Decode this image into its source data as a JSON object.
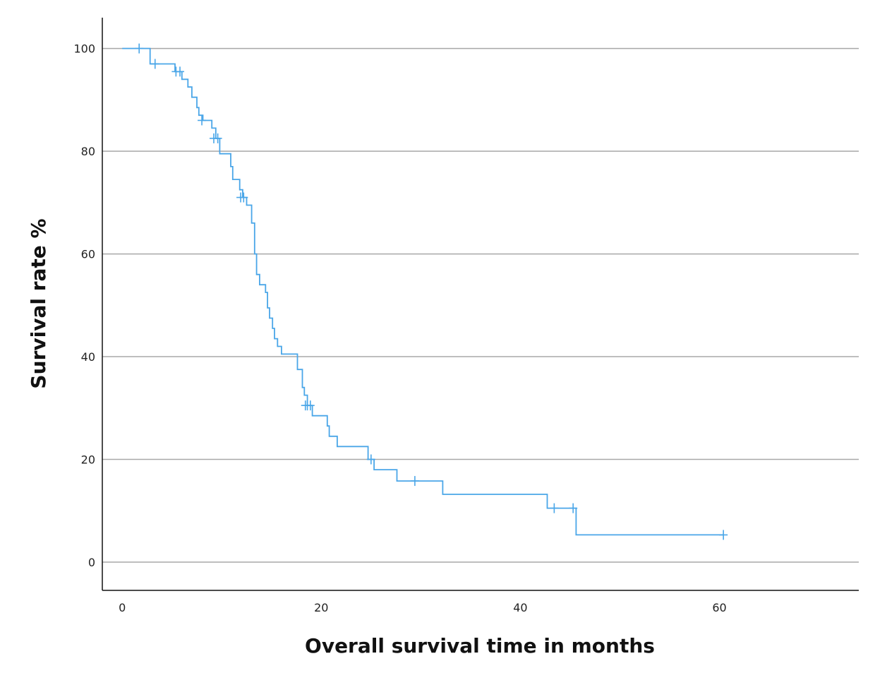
{
  "chart_data": {
    "type": "line",
    "title": "",
    "xlabel": "Overall survival time in months",
    "ylabel": "Survival rate %",
    "xlim": [
      -2,
      74
    ],
    "ylim": [
      -5.5,
      106
    ],
    "xticks": [
      0,
      20,
      40,
      60
    ],
    "yticks": [
      0,
      20,
      40,
      60,
      80,
      100
    ],
    "grid": {
      "horizontal": true,
      "vertical": false
    },
    "series": [
      {
        "color": "#4aa6e8",
        "step": true,
        "points": [
          [
            0,
            100
          ],
          [
            2.8,
            100
          ],
          [
            2.8,
            97
          ],
          [
            5.3,
            97
          ],
          [
            5.3,
            95.5
          ],
          [
            6.0,
            95.5
          ],
          [
            6.0,
            94.0
          ],
          [
            6.6,
            94.0
          ],
          [
            6.6,
            92.5
          ],
          [
            7.0,
            92.5
          ],
          [
            7.0,
            90.5
          ],
          [
            7.5,
            90.5
          ],
          [
            7.5,
            88.5
          ],
          [
            7.7,
            88.5
          ],
          [
            7.7,
            87.0
          ],
          [
            8.1,
            87.0
          ],
          [
            8.1,
            86.0
          ],
          [
            9.0,
            86.0
          ],
          [
            9.0,
            84.5
          ],
          [
            9.4,
            84.5
          ],
          [
            9.4,
            82.5
          ],
          [
            9.8,
            82.5
          ],
          [
            9.8,
            79.5
          ],
          [
            10.9,
            79.5
          ],
          [
            10.9,
            77.0
          ],
          [
            11.1,
            77.0
          ],
          [
            11.1,
            74.5
          ],
          [
            11.8,
            74.5
          ],
          [
            11.8,
            72.5
          ],
          [
            12.1,
            72.5
          ],
          [
            12.1,
            71.0
          ],
          [
            12.5,
            71.0
          ],
          [
            12.5,
            69.5
          ],
          [
            13.0,
            69.5
          ],
          [
            13.0,
            66.0
          ],
          [
            13.3,
            66.0
          ],
          [
            13.3,
            60.0
          ],
          [
            13.5,
            60.0
          ],
          [
            13.5,
            56.0
          ],
          [
            13.8,
            56.0
          ],
          [
            13.8,
            54.0
          ],
          [
            14.4,
            54.0
          ],
          [
            14.4,
            52.5
          ],
          [
            14.6,
            52.5
          ],
          [
            14.6,
            49.5
          ],
          [
            14.8,
            49.5
          ],
          [
            14.8,
            47.5
          ],
          [
            15.1,
            47.5
          ],
          [
            15.1,
            45.5
          ],
          [
            15.3,
            45.5
          ],
          [
            15.3,
            43.5
          ],
          [
            15.6,
            43.5
          ],
          [
            15.6,
            42.0
          ],
          [
            16.0,
            42.0
          ],
          [
            16.0,
            40.5
          ],
          [
            17.6,
            40.5
          ],
          [
            17.6,
            37.5
          ],
          [
            18.1,
            37.5
          ],
          [
            18.1,
            34.0
          ],
          [
            18.3,
            34.0
          ],
          [
            18.3,
            32.5
          ],
          [
            18.6,
            32.5
          ],
          [
            18.6,
            30.5
          ],
          [
            19.1,
            30.5
          ],
          [
            19.1,
            28.5
          ],
          [
            20.6,
            28.5
          ],
          [
            20.6,
            26.5
          ],
          [
            20.8,
            26.5
          ],
          [
            20.8,
            24.5
          ],
          [
            21.6,
            24.5
          ],
          [
            21.6,
            22.5
          ],
          [
            24.7,
            22.5
          ],
          [
            24.7,
            20.0
          ],
          [
            25.3,
            20.0
          ],
          [
            25.3,
            18.0
          ],
          [
            27.6,
            18.0
          ],
          [
            27.6,
            15.8
          ],
          [
            32.2,
            15.8
          ],
          [
            32.2,
            13.2
          ],
          [
            42.7,
            13.2
          ],
          [
            42.7,
            10.5
          ],
          [
            45.6,
            10.5
          ],
          [
            45.6,
            5.3
          ],
          [
            60.4,
            5.3
          ]
        ],
        "censored": [
          [
            1.7,
            100
          ],
          [
            3.3,
            97
          ],
          [
            5.4,
            95.5
          ],
          [
            5.8,
            95.5
          ],
          [
            8.0,
            86.0
          ],
          [
            9.2,
            82.5
          ],
          [
            9.6,
            82.5
          ],
          [
            11.9,
            71.0
          ],
          [
            12.2,
            71.0
          ],
          [
            18.4,
            30.5
          ],
          [
            18.6,
            30.5
          ],
          [
            18.9,
            30.5
          ],
          [
            25.0,
            20.0
          ],
          [
            29.4,
            15.8
          ],
          [
            43.4,
            10.5
          ],
          [
            45.3,
            10.5
          ],
          [
            60.4,
            5.3
          ]
        ]
      }
    ]
  }
}
